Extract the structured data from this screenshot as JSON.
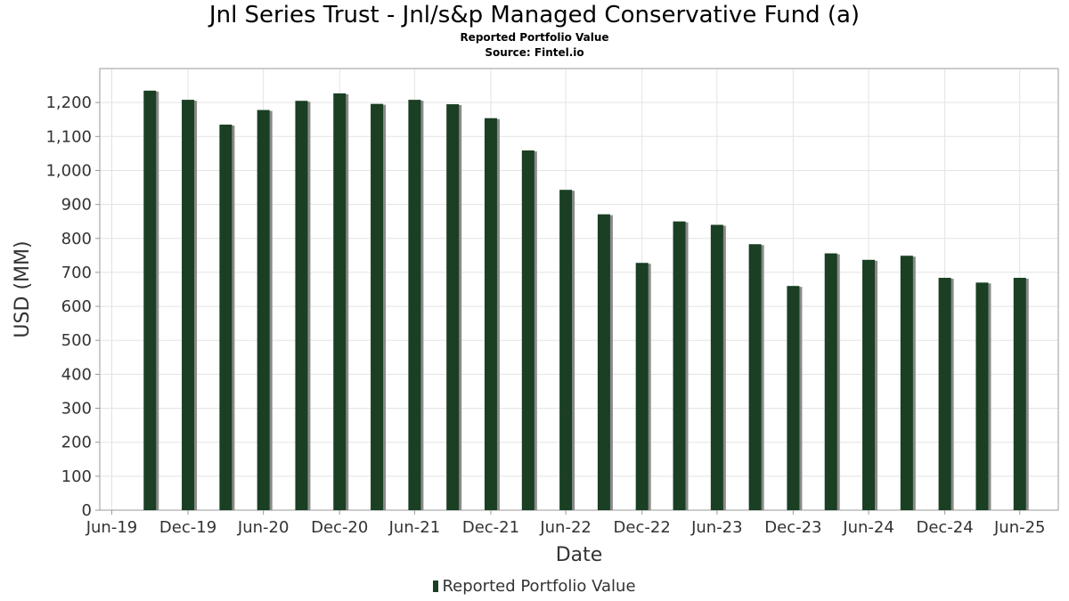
{
  "chart_data": {
    "type": "bar",
    "title": "Jnl Series Trust - Jnl/s&p Managed Conservative Fund (a)",
    "subtitle": "Reported Portfolio Value",
    "source": "Source: Fintel.io",
    "xlabel": "Date",
    "ylabel": "USD (MM)",
    "ylim": [
      0,
      1300
    ],
    "yticks": [
      0,
      100,
      200,
      300,
      400,
      500,
      600,
      700,
      800,
      900,
      1000,
      1100,
      1200
    ],
    "ytick_labels": [
      "0",
      "100",
      "200",
      "300",
      "400",
      "500",
      "600",
      "700",
      "800",
      "900",
      "1,000",
      "1,100",
      "1,200"
    ],
    "xlim": [
      "2019-06-01",
      "2025-10-01"
    ],
    "xticks": [
      {
        "label": "Jun-19",
        "date": "2019-06-30"
      },
      {
        "label": "Dec-19",
        "date": "2019-12-31"
      },
      {
        "label": "Jun-20",
        "date": "2020-06-30"
      },
      {
        "label": "Dec-20",
        "date": "2020-12-31"
      },
      {
        "label": "Jun-21",
        "date": "2021-06-30"
      },
      {
        "label": "Dec-21",
        "date": "2021-12-31"
      },
      {
        "label": "Jun-22",
        "date": "2022-06-30"
      },
      {
        "label": "Dec-22",
        "date": "2022-12-31"
      },
      {
        "label": "Jun-23",
        "date": "2023-06-30"
      },
      {
        "label": "Dec-23",
        "date": "2023-12-31"
      },
      {
        "label": "Jun-24",
        "date": "2024-06-30"
      },
      {
        "label": "Dec-24",
        "date": "2024-12-31"
      },
      {
        "label": "Jun-25",
        "date": "2025-06-30"
      }
    ],
    "grid": true,
    "legend_position": "bottom-center",
    "series": [
      {
        "name": "Reported Portfolio Value",
        "color": "#1a3f23",
        "x": [
          "2019-09-30",
          "2019-12-31",
          "2020-03-31",
          "2020-06-30",
          "2020-09-30",
          "2020-12-31",
          "2021-03-31",
          "2021-06-30",
          "2021-09-30",
          "2021-12-31",
          "2022-03-31",
          "2022-06-30",
          "2022-09-30",
          "2022-12-31",
          "2023-03-31",
          "2023-06-30",
          "2023-09-30",
          "2023-12-31",
          "2024-03-31",
          "2024-06-30",
          "2024-09-30",
          "2024-12-31",
          "2025-03-31",
          "2025-06-30"
        ],
        "values": [
          1235,
          1208,
          1135,
          1178,
          1205,
          1227,
          1196,
          1208,
          1195,
          1154,
          1059,
          943,
          871,
          728,
          850,
          840,
          783,
          660,
          756,
          737,
          749,
          684,
          670,
          684
        ]
      }
    ]
  }
}
